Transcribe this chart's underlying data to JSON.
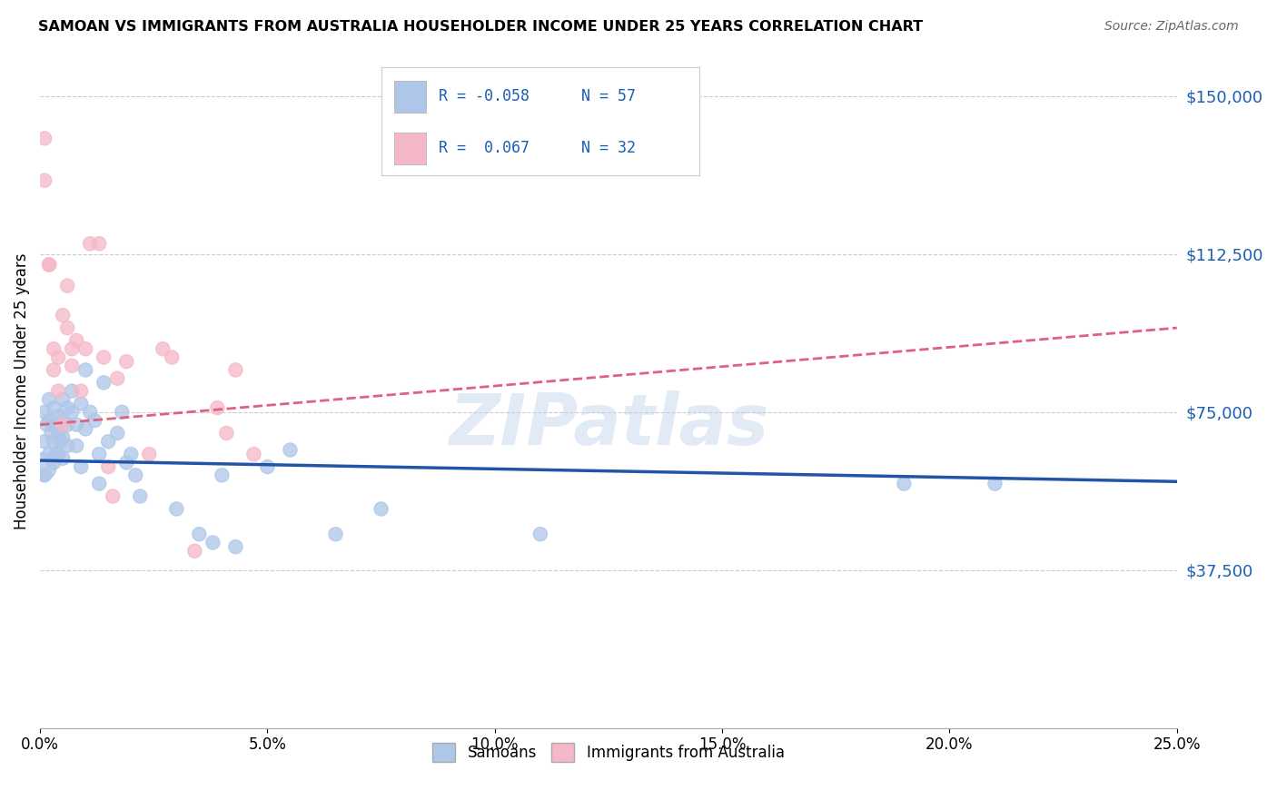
{
  "title": "SAMOAN VS IMMIGRANTS FROM AUSTRALIA HOUSEHOLDER INCOME UNDER 25 YEARS CORRELATION CHART",
  "source": "Source: ZipAtlas.com",
  "ylabel": "Householder Income Under 25 years",
  "yticks": [
    0,
    37500,
    75000,
    112500,
    150000
  ],
  "ytick_labels": [
    "",
    "$37,500",
    "$75,000",
    "$112,500",
    "$150,000"
  ],
  "xlim": [
    0.0,
    0.25
  ],
  "ylim": [
    0,
    160000
  ],
  "legend_r_blue": "R = -0.058",
  "legend_n_blue": "N = 57",
  "legend_r_pink": "R =  0.067",
  "legend_n_pink": "N = 32",
  "blue_color": "#aec6e8",
  "pink_color": "#f4b8c8",
  "blue_line_color": "#2255aa",
  "pink_line_color": "#e06080",
  "watermark": "ZIPatlas",
  "blue_line_x0": 0.0,
  "blue_line_y0": 63500,
  "blue_line_x1": 0.25,
  "blue_line_y1": 58500,
  "pink_line_x0": 0.0,
  "pink_line_y0": 72000,
  "pink_line_x1": 0.25,
  "pink_line_y1": 95000,
  "samoans_x": [
    0.0005,
    0.001,
    0.001,
    0.001,
    0.0015,
    0.002,
    0.002,
    0.002,
    0.0025,
    0.003,
    0.003,
    0.003,
    0.003,
    0.0035,
    0.004,
    0.004,
    0.004,
    0.0045,
    0.005,
    0.005,
    0.005,
    0.005,
    0.006,
    0.006,
    0.006,
    0.007,
    0.007,
    0.008,
    0.008,
    0.009,
    0.009,
    0.01,
    0.01,
    0.011,
    0.012,
    0.013,
    0.013,
    0.014,
    0.015,
    0.017,
    0.018,
    0.019,
    0.02,
    0.021,
    0.022,
    0.03,
    0.035,
    0.038,
    0.04,
    0.043,
    0.05,
    0.055,
    0.065,
    0.075,
    0.11,
    0.19,
    0.21
  ],
  "samoans_y": [
    62000,
    75000,
    68000,
    60000,
    72000,
    78000,
    73000,
    65000,
    70000,
    76000,
    72000,
    68000,
    63000,
    65000,
    74000,
    70000,
    65000,
    68000,
    78000,
    73000,
    69000,
    64000,
    76000,
    72000,
    67000,
    80000,
    75000,
    72000,
    67000,
    77000,
    62000,
    85000,
    71000,
    75000,
    73000,
    65000,
    58000,
    82000,
    68000,
    70000,
    75000,
    63000,
    65000,
    60000,
    55000,
    52000,
    46000,
    44000,
    60000,
    43000,
    62000,
    66000,
    46000,
    52000,
    46000,
    58000,
    58000
  ],
  "australia_x": [
    0.001,
    0.001,
    0.002,
    0.002,
    0.003,
    0.003,
    0.004,
    0.004,
    0.005,
    0.005,
    0.006,
    0.006,
    0.007,
    0.007,
    0.008,
    0.009,
    0.01,
    0.011,
    0.013,
    0.014,
    0.015,
    0.016,
    0.017,
    0.019,
    0.024,
    0.027,
    0.029,
    0.034,
    0.039,
    0.041,
    0.043,
    0.047
  ],
  "australia_y": [
    140000,
    130000,
    110000,
    110000,
    90000,
    85000,
    88000,
    80000,
    98000,
    72000,
    105000,
    95000,
    90000,
    86000,
    92000,
    80000,
    90000,
    115000,
    115000,
    88000,
    62000,
    55000,
    83000,
    87000,
    65000,
    90000,
    88000,
    42000,
    76000,
    70000,
    85000,
    65000
  ],
  "samoans_size": [
    500,
    120,
    120,
    120,
    120,
    120,
    120,
    120,
    120,
    120,
    120,
    120,
    120,
    120,
    120,
    120,
    120,
    120,
    120,
    120,
    120,
    120,
    120,
    120,
    120,
    120,
    120,
    120,
    120,
    120,
    120,
    120,
    120,
    120,
    120,
    120,
    120,
    120,
    120,
    120,
    120,
    120,
    120,
    120,
    120,
    120,
    120,
    120,
    120,
    120,
    120,
    120,
    120,
    120,
    120,
    120,
    120
  ],
  "australia_size": [
    120,
    120,
    120,
    120,
    120,
    120,
    120,
    120,
    120,
    120,
    120,
    120,
    120,
    120,
    120,
    120,
    120,
    120,
    120,
    120,
    120,
    120,
    120,
    120,
    120,
    120,
    120,
    120,
    120,
    120,
    120,
    120
  ]
}
